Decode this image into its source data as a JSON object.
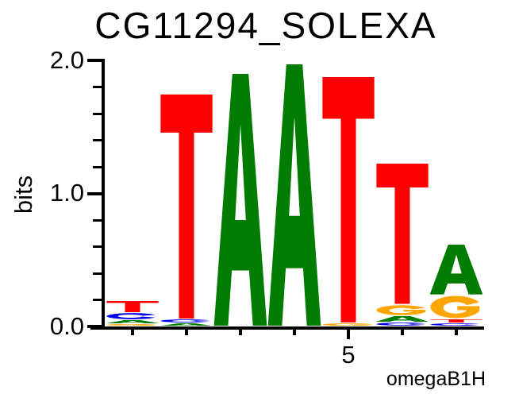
{
  "title": "CG11294_SOLEXA",
  "y_axis": {
    "label": "bits",
    "ticks": [
      "2.0",
      "1.0",
      "0.0"
    ]
  },
  "x_axis": {
    "tick_label": "5",
    "labeled_position": 5
  },
  "credit": "omegaB1H",
  "colors": {
    "A": "#007c00",
    "C": "#0000ee",
    "G": "#ffa500",
    "T": "#ff0000",
    "axis": "#000000"
  },
  "chart_data": {
    "type": "sequence-logo",
    "title": "CG11294_SOLEXA",
    "ylabel": "bits",
    "ylim": [
      0,
      2
    ],
    "y_major_ticks": [
      0.0,
      1.0,
      2.0
    ],
    "y_minor_tick_step": 0.2,
    "num_positions": 7,
    "consensus": "NTAATTA",
    "positions": [
      {
        "pos": 1,
        "stack_bottom_to_top": [
          {
            "base": "G",
            "bits": 0.018
          },
          {
            "base": "A",
            "bits": 0.03
          },
          {
            "base": "C",
            "bits": 0.054
          },
          {
            "base": "T",
            "bits": 0.09
          }
        ]
      },
      {
        "pos": 2,
        "stack_bottom_to_top": [
          {
            "base": "A",
            "bits": 0.025
          },
          {
            "base": "C",
            "bits": 0.03
          },
          {
            "base": "T",
            "bits": 1.69
          }
        ]
      },
      {
        "pos": 3,
        "stack_bottom_to_top": [
          {
            "base": "A",
            "bits": 1.9
          }
        ]
      },
      {
        "pos": 4,
        "stack_bottom_to_top": [
          {
            "base": "A",
            "bits": 1.97
          }
        ]
      },
      {
        "pos": 5,
        "stack_bottom_to_top": [
          {
            "base": "G",
            "bits": 0.025
          },
          {
            "base": "T",
            "bits": 1.85
          }
        ]
      },
      {
        "pos": 6,
        "stack_bottom_to_top": [
          {
            "base": "C",
            "bits": 0.03
          },
          {
            "base": "A",
            "bits": 0.048
          },
          {
            "base": "G",
            "bits": 0.084
          },
          {
            "base": "T",
            "bits": 1.06
          }
        ]
      },
      {
        "pos": 7,
        "stack_bottom_to_top": [
          {
            "base": "C",
            "bits": 0.025
          },
          {
            "base": "T",
            "bits": 0.03
          },
          {
            "base": "G",
            "bits": 0.18
          },
          {
            "base": "A",
            "bits": 0.38
          }
        ]
      }
    ]
  }
}
